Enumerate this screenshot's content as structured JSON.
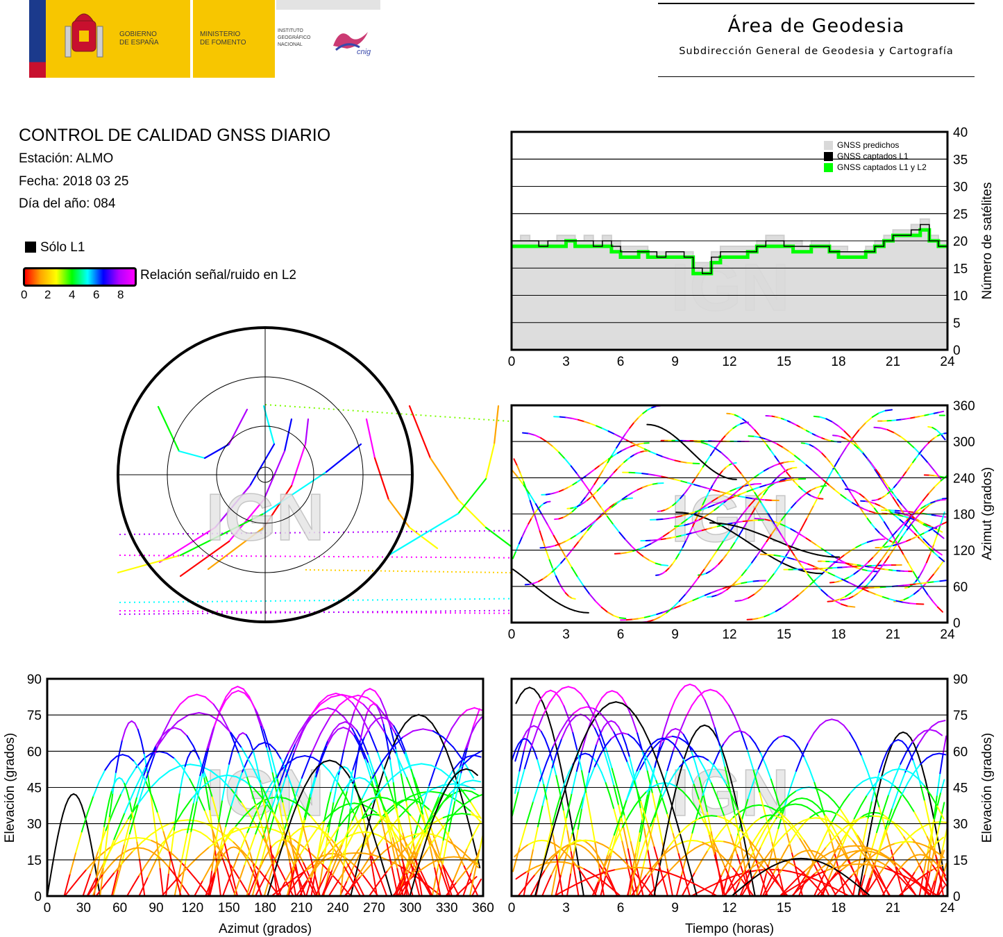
{
  "header": {
    "gov_line1": "GOBIERNO",
    "gov_line2": "DE ESPAÑA",
    "min_line1": "MINISTERIO",
    "min_line2": "DE FOMENTO",
    "ign_line1": "INSTITUTO",
    "ign_line2": "GEOGRÁFICO",
    "ign_line3": "NACIONAL",
    "cnig": "cnig",
    "area_title": "Área de Geodesia",
    "area_subtitle": "Subdirección General de Geodesia y Cartografía"
  },
  "info": {
    "title": "CONTROL DE CALIDAD GNSS DIARIO",
    "station": "Estación: ALMO",
    "date": "Fecha: 2018 03 25",
    "doy": "Día del año: 084",
    "legend_l1": "Sólo L1",
    "legend_snr": "Relación señal/ruido en L2",
    "snr_ticks": [
      "0",
      "2",
      "4",
      "6",
      "8"
    ]
  },
  "watermark": "IGN",
  "colors": {
    "predicted": "#d9d9d9",
    "l1": "#000000",
    "l1l2": "#00ff00",
    "snr_scale": [
      "#ff0000",
      "#ffa500",
      "#ffff00",
      "#00ff00",
      "#00ffff",
      "#0000ff",
      "#b000ff",
      "#ff00ff"
    ]
  },
  "chart_data": [
    {
      "type": "step",
      "name": "satellite-count",
      "ylabel": "Número de satélites",
      "xlim": [
        0,
        24
      ],
      "ylim": [
        0,
        40
      ],
      "xticks": [
        0,
        3,
        6,
        9,
        12,
        15,
        18,
        21,
        24
      ],
      "yticks": [
        0,
        5,
        10,
        15,
        20,
        25,
        30,
        35,
        40
      ],
      "legend": [
        "GNSS predichos",
        "GNSS captados L1",
        "GNSS captados L1 y L2"
      ],
      "legend_position": "top-right",
      "x": [
        0,
        0.5,
        1,
        1.5,
        2,
        2.5,
        3,
        3.5,
        4,
        4.5,
        5,
        5.5,
        6,
        6.5,
        7,
        7.5,
        8,
        8.5,
        9,
        9.5,
        10,
        10.5,
        11,
        11.5,
        12,
        12.5,
        13,
        13.5,
        14,
        14.5,
        15,
        15.5,
        16,
        16.5,
        17,
        17.5,
        18,
        18.5,
        19,
        19.5,
        20,
        20.5,
        21,
        21.5,
        22,
        22.5,
        23,
        23.5,
        24
      ],
      "series": [
        {
          "name": "GNSS predichos",
          "values": [
            20,
            21,
            20,
            20,
            20,
            21,
            21,
            20,
            21,
            20,
            21,
            20,
            19,
            19,
            19,
            18,
            18,
            18,
            18,
            18,
            16,
            16,
            18,
            19,
            19,
            19,
            19,
            20,
            21,
            21,
            20,
            20,
            19,
            20,
            20,
            19,
            19,
            18,
            18,
            19,
            20,
            21,
            22,
            22,
            23,
            24,
            21,
            20,
            20
          ]
        },
        {
          "name": "GNSS captados L1",
          "values": [
            20,
            20,
            20,
            19,
            20,
            20,
            20,
            20,
            20,
            19,
            20,
            19,
            18,
            18,
            18,
            18,
            17,
            18,
            18,
            17,
            15,
            14,
            17,
            18,
            18,
            18,
            18,
            19,
            20,
            20,
            19,
            19,
            19,
            19,
            19,
            18,
            18,
            18,
            18,
            18,
            19,
            20,
            21,
            21,
            22,
            23,
            20,
            19,
            19
          ]
        },
        {
          "name": "GNSS captados L1 y L2",
          "values": [
            19,
            19,
            19,
            19,
            19,
            19,
            20,
            19,
            19,
            19,
            19,
            18,
            17,
            17,
            18,
            17,
            17,
            17,
            17,
            17,
            14,
            14,
            16,
            17,
            17,
            17,
            18,
            19,
            19,
            19,
            19,
            18,
            18,
            19,
            19,
            18,
            17,
            17,
            17,
            18,
            19,
            20,
            21,
            21,
            21,
            22,
            20,
            19,
            19
          ]
        }
      ]
    },
    {
      "type": "polar",
      "name": "skyplot",
      "rings": [
        0,
        30,
        60,
        90
      ]
    },
    {
      "type": "scatter",
      "name": "azimuth-vs-time",
      "ylabel": "Azimut (grados)",
      "xlim": [
        0,
        24
      ],
      "ylim": [
        0,
        360
      ],
      "xticks": [
        0,
        3,
        6,
        9,
        12,
        15,
        18,
        21,
        24
      ],
      "yticks": [
        0,
        60,
        120,
        180,
        240,
        300,
        360
      ]
    },
    {
      "type": "scatter",
      "name": "elevation-vs-azimuth",
      "xlabel": "Azimut (grados)",
      "ylabel": "Elevación (grados)",
      "xlim": [
        0,
        360
      ],
      "ylim": [
        0,
        90
      ],
      "xticks": [
        0,
        30,
        60,
        90,
        120,
        150,
        180,
        210,
        240,
        270,
        300,
        330,
        360
      ],
      "yticks": [
        0,
        15,
        30,
        45,
        60,
        75,
        90
      ]
    },
    {
      "type": "scatter",
      "name": "elevation-vs-time",
      "xlabel": "Tiempo (horas)",
      "ylabel": "Elevación (grados)",
      "xlim": [
        0,
        24
      ],
      "ylim": [
        0,
        90
      ],
      "xticks": [
        0,
        3,
        6,
        9,
        12,
        15,
        18,
        21,
        24
      ],
      "yticks": [
        0,
        15,
        30,
        45,
        60,
        75,
        90
      ]
    }
  ]
}
